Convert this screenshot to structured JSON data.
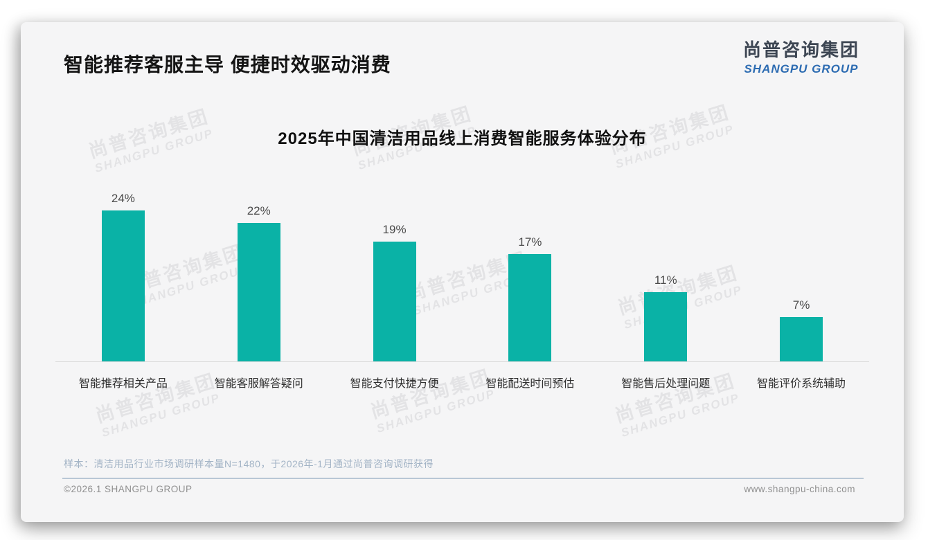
{
  "header": {
    "title": "智能推荐客服主导 便捷时效驱动消费",
    "logo_cn": "尚普咨询集团",
    "logo_en": "SHANGPU GROUP"
  },
  "watermark": {
    "cn": "尚普咨询集团",
    "en": "SHANGPU GROUP"
  },
  "chart_data": {
    "type": "bar",
    "title": "2025年中国清洁用品线上消费智能服务体验分布",
    "categories": [
      "智能推荐相关产品",
      "智能客服解答疑问",
      "智能支付快捷方便",
      "智能配送时间预估",
      "智能售后处理问题",
      "智能评价系统辅助"
    ],
    "values": [
      24,
      22,
      19,
      17,
      11,
      7
    ],
    "unit": "%",
    "bar_color": "#0ab2a6",
    "value_labels": true,
    "grid": false,
    "legend": false,
    "xlabel": "",
    "ylabel": ""
  },
  "footer": {
    "note": "样本：清洁用品行业市场调研样本量N=1480，于2026年-1月通过尚普咨询调研获得",
    "copyright": "©2026.1 SHANGPU GROUP",
    "website": "www.shangpu-china.com"
  },
  "colors": {
    "bar": "#0ab2a6",
    "logo_blue": "#2d6cb2",
    "note_text": "#a3b4c6"
  }
}
